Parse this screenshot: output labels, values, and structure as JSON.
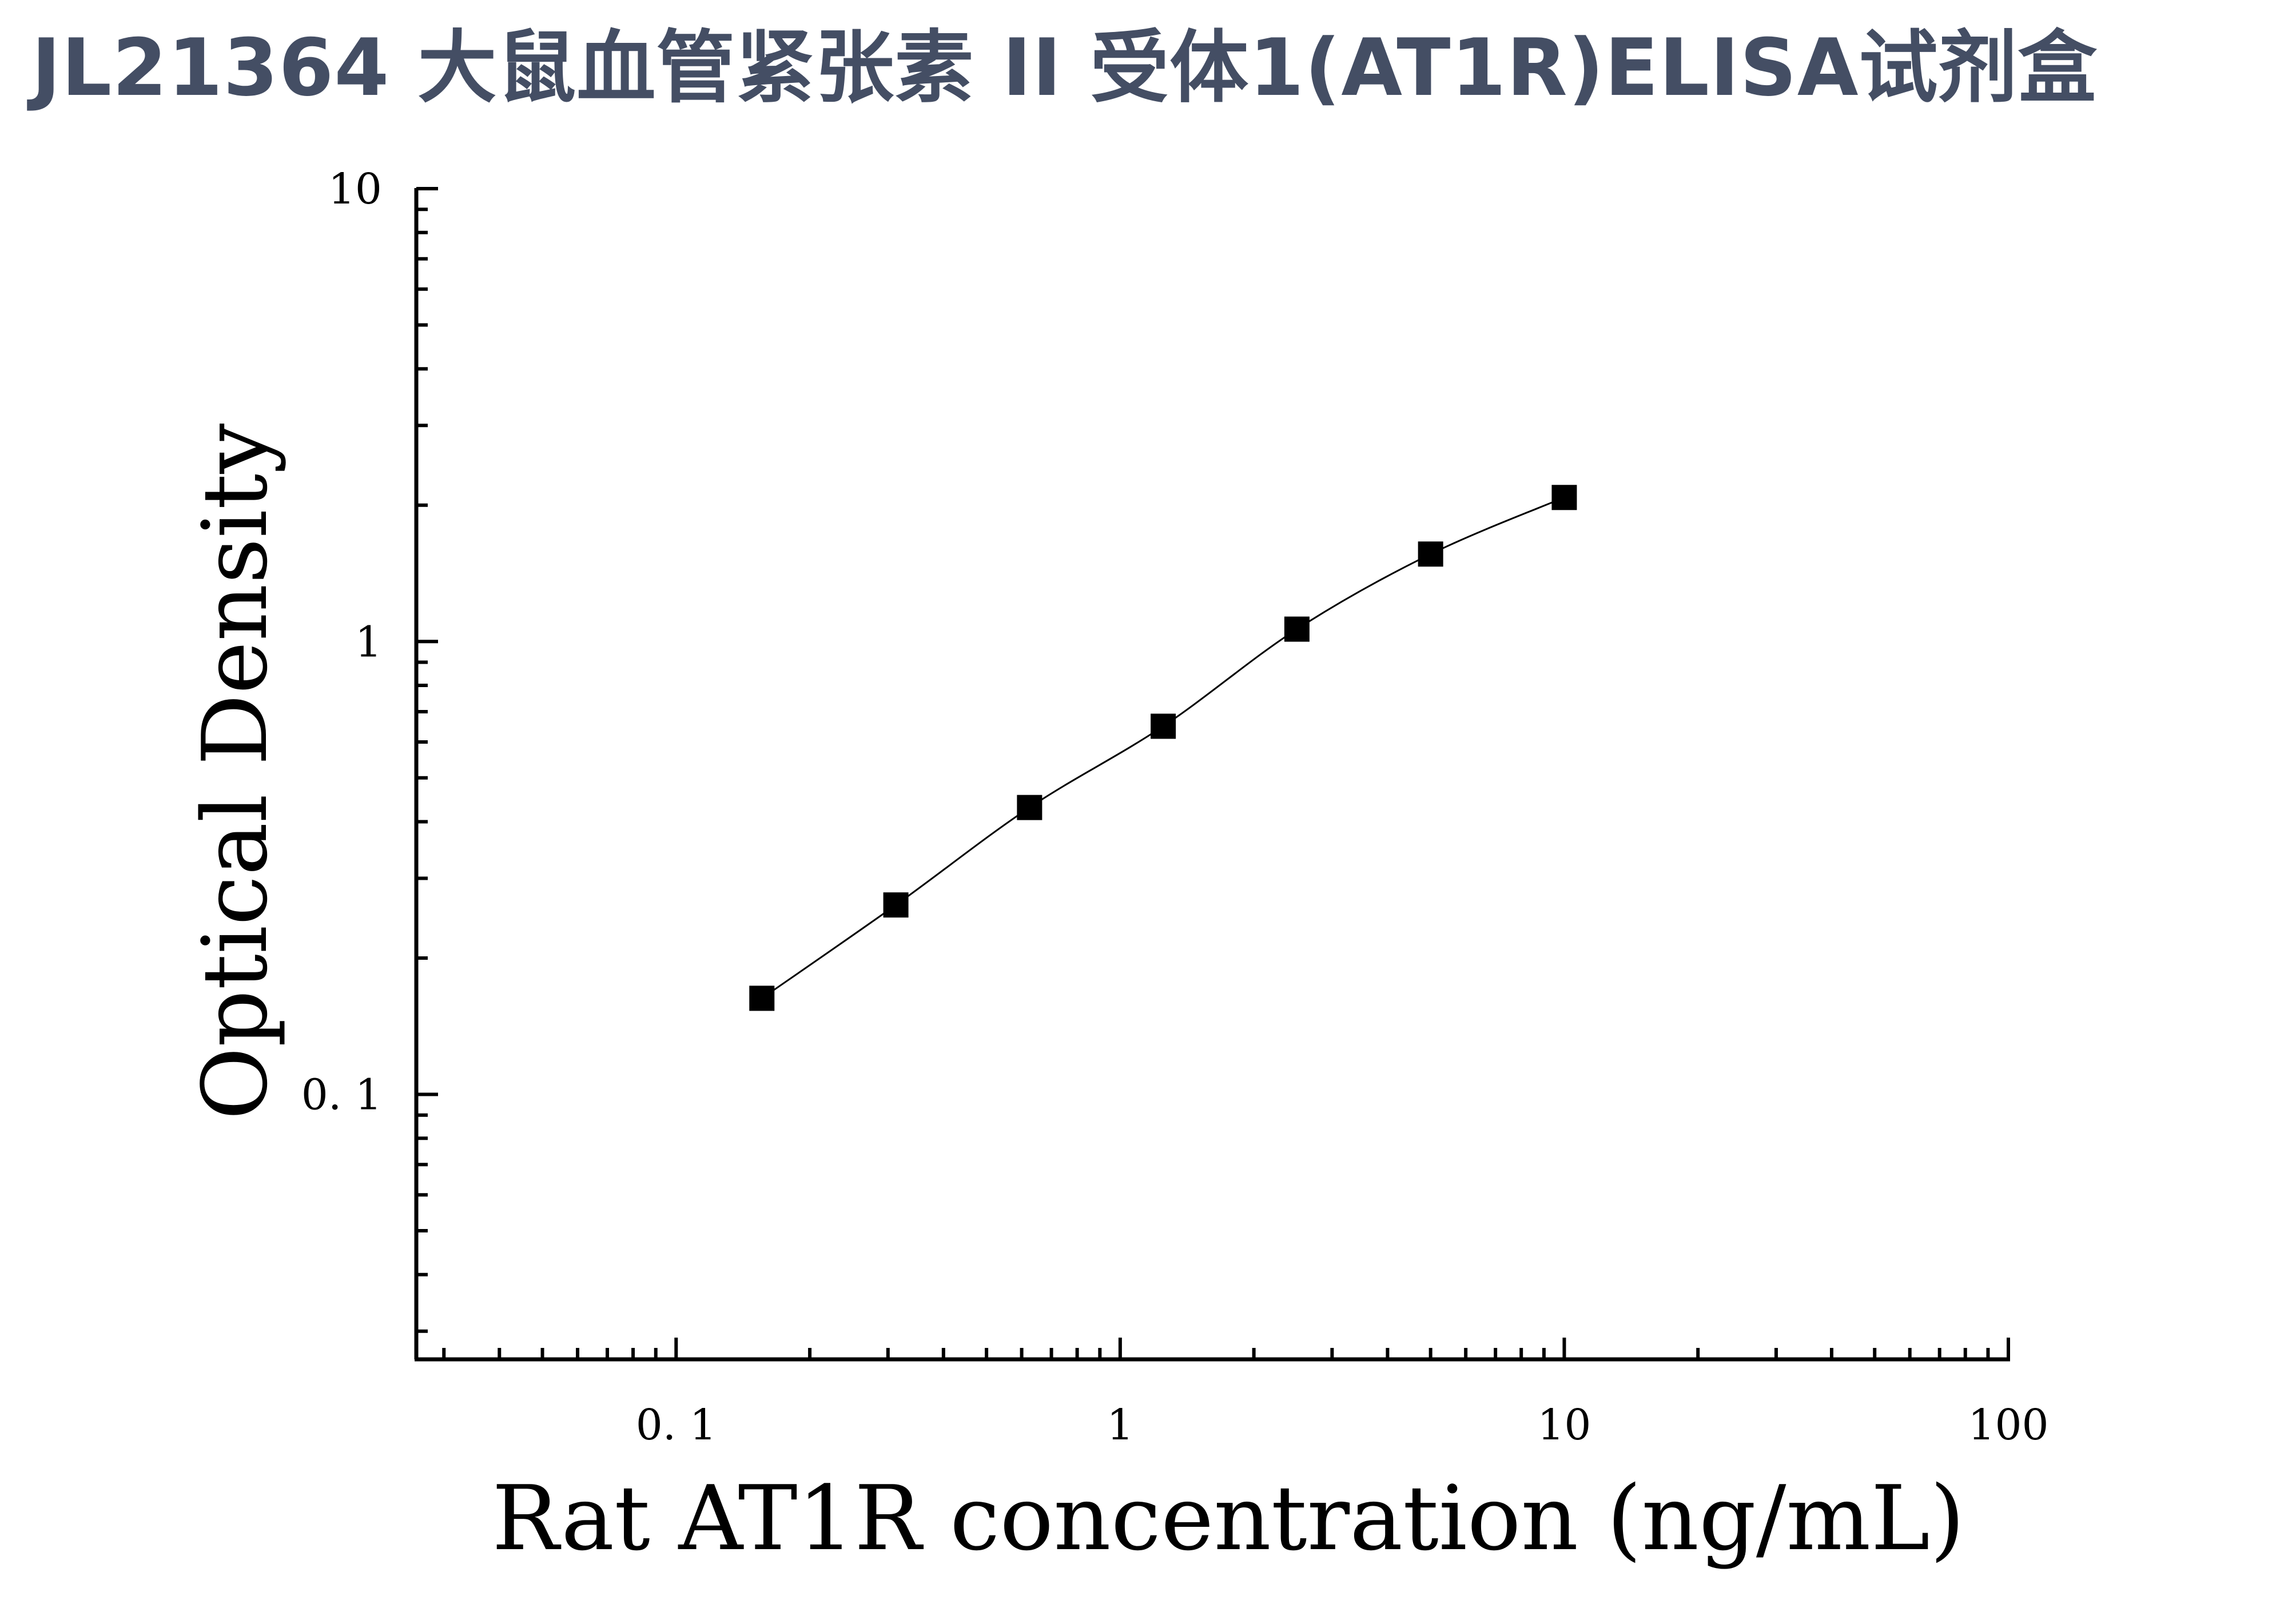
{
  "title": "JL21364 大鼠血管紧张素 II 受体1(AT1R)ELISA试剂盒",
  "title_color": "#444e64",
  "chart_data": {
    "type": "scatter",
    "title": "",
    "xlabel": "Rat AT1R concentration (ng/mL)",
    "ylabel": "Optical Density",
    "x_scale": "log",
    "y_scale": "log",
    "xlim": [
      0.026,
      100
    ],
    "ylim": [
      0.026,
      10
    ],
    "x_ticks": [
      {
        "value": 0.1,
        "label": "0. 1"
      },
      {
        "value": 1,
        "label": "1"
      },
      {
        "value": 10,
        "label": "10"
      },
      {
        "value": 100,
        "label": "100"
      }
    ],
    "y_ticks": [
      {
        "value": 0.1,
        "label": "0. 1"
      },
      {
        "value": 1,
        "label": "1"
      },
      {
        "value": 10,
        "label": "10"
      }
    ],
    "grid": false,
    "legend": "none",
    "marker": "square",
    "marker_color": "#000000",
    "fit_curve": true,
    "x": [
      0.156,
      0.3125,
      0.625,
      1.25,
      2.5,
      5,
      10
    ],
    "y": [
      0.163,
      0.262,
      0.43,
      0.65,
      1.065,
      1.56,
      2.08
    ]
  }
}
